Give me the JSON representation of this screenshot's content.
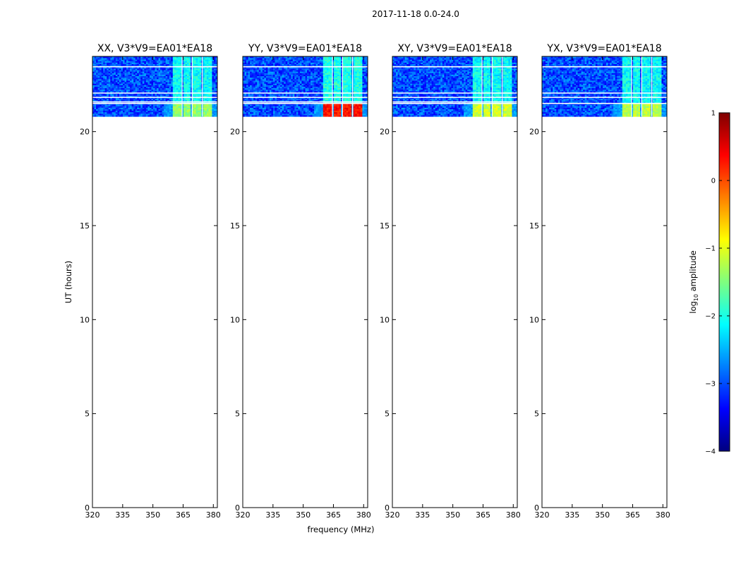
{
  "figure": {
    "title": "2017-11-18 0.0-24.0",
    "xlabel": "frequency (MHz)",
    "ylabel": "UT (hours)"
  },
  "colorbar": {
    "label": "log",
    "label_sub": "10",
    "label_rest": " amplitude",
    "range": [
      -4,
      1
    ],
    "ticks": [
      1,
      0,
      -1,
      -2,
      -3,
      -4
    ],
    "tick_labels": [
      "1",
      "0",
      "−1",
      "−2",
      "−3",
      "−4"
    ],
    "colormap": "jet",
    "colors": [
      "#00007f",
      "#0000ff",
      "#007fff",
      "#00ffff",
      "#7fff7f",
      "#ffff00",
      "#ff7f00",
      "#ff0000",
      "#7f0000"
    ]
  },
  "chart_data": [
    {
      "type": "heatmap",
      "title": "XX, V3*V9=EA01*EA18",
      "xlim": [
        320,
        382
      ],
      "ylim": [
        0,
        24
      ],
      "xticks": [
        320,
        335,
        350,
        365,
        380
      ],
      "xtick_labels": [
        "320",
        "335",
        "350",
        "365",
        "380"
      ],
      "yticks": [
        0,
        5,
        10,
        15,
        20
      ],
      "ytick_labels": [
        "0",
        "5",
        "10",
        "15",
        "20"
      ],
      "data_time_range": [
        20.8,
        24.0
      ],
      "background_log_amp": -3.0,
      "rfi_bands_mhz": [
        [
          360,
          364
        ],
        [
          365,
          369
        ],
        [
          370,
          374
        ],
        [
          375,
          379
        ]
      ],
      "rfi_band_log_amp": -2.1,
      "strong_period_hours": [
        20.8,
        21.5
      ],
      "strong_period_log_amp": -1.4,
      "flagged_times_hours": [
        23.45,
        22.05,
        21.82,
        21.58,
        21.5
      ]
    },
    {
      "type": "heatmap",
      "title": "YY, V3*V9=EA01*EA18",
      "xlim": [
        320,
        382
      ],
      "ylim": [
        0,
        24
      ],
      "xticks": [
        320,
        335,
        350,
        365,
        380
      ],
      "xtick_labels": [
        "320",
        "335",
        "350",
        "365",
        "380"
      ],
      "yticks": [
        0,
        5,
        10,
        15,
        20
      ],
      "ytick_labels": [
        "0",
        "5",
        "10",
        "15",
        "20"
      ],
      "data_time_range": [
        20.8,
        24.0
      ],
      "background_log_amp": -3.0,
      "rfi_bands_mhz": [
        [
          360,
          364
        ],
        [
          365,
          369
        ],
        [
          370,
          374
        ],
        [
          375,
          379
        ]
      ],
      "rfi_band_log_amp": -2.0,
      "strong_period_hours": [
        20.8,
        21.5
      ],
      "strong_period_log_amp": 0.3,
      "flagged_times_hours": [
        23.45,
        22.05,
        21.82,
        21.58,
        21.5
      ]
    },
    {
      "type": "heatmap",
      "title": "XY, V3*V9=EA01*EA18",
      "xlim": [
        320,
        382
      ],
      "ylim": [
        0,
        24
      ],
      "xticks": [
        320,
        335,
        350,
        365,
        380
      ],
      "xtick_labels": [
        "320",
        "335",
        "350",
        "365",
        "380"
      ],
      "yticks": [
        0,
        5,
        10,
        15,
        20
      ],
      "ytick_labels": [
        "0",
        "5",
        "10",
        "15",
        "20"
      ],
      "data_time_range": [
        20.8,
        24.0
      ],
      "background_log_amp": -3.0,
      "rfi_bands_mhz": [
        [
          360,
          364
        ],
        [
          365,
          369
        ],
        [
          370,
          374
        ],
        [
          375,
          379
        ]
      ],
      "rfi_band_log_amp": -2.1,
      "strong_period_hours": [
        20.8,
        21.5
      ],
      "strong_period_log_amp": -1.1,
      "flagged_times_hours": [
        23.45,
        22.05,
        21.82,
        21.58,
        21.5
      ]
    },
    {
      "type": "heatmap",
      "title": "YX, V3*V9=EA01*EA18",
      "xlim": [
        320,
        382
      ],
      "ylim": [
        0,
        24
      ],
      "xticks": [
        320,
        335,
        350,
        365,
        380
      ],
      "xtick_labels": [
        "320",
        "335",
        "350",
        "365",
        "380"
      ],
      "yticks": [
        0,
        5,
        10,
        15,
        20
      ],
      "ytick_labels": [
        "0",
        "5",
        "10",
        "15",
        "20"
      ],
      "data_time_range": [
        20.8,
        24.0
      ],
      "background_log_amp": -3.0,
      "rfi_bands_mhz": [
        [
          360,
          364
        ],
        [
          365,
          369
        ],
        [
          370,
          374
        ],
        [
          375,
          379
        ]
      ],
      "rfi_band_log_amp": -2.1,
      "strong_period_hours": [
        20.8,
        21.5
      ],
      "strong_period_log_amp": -1.2,
      "flagged_times_hours": [
        23.45,
        22.05,
        21.82,
        21.5
      ]
    }
  ]
}
